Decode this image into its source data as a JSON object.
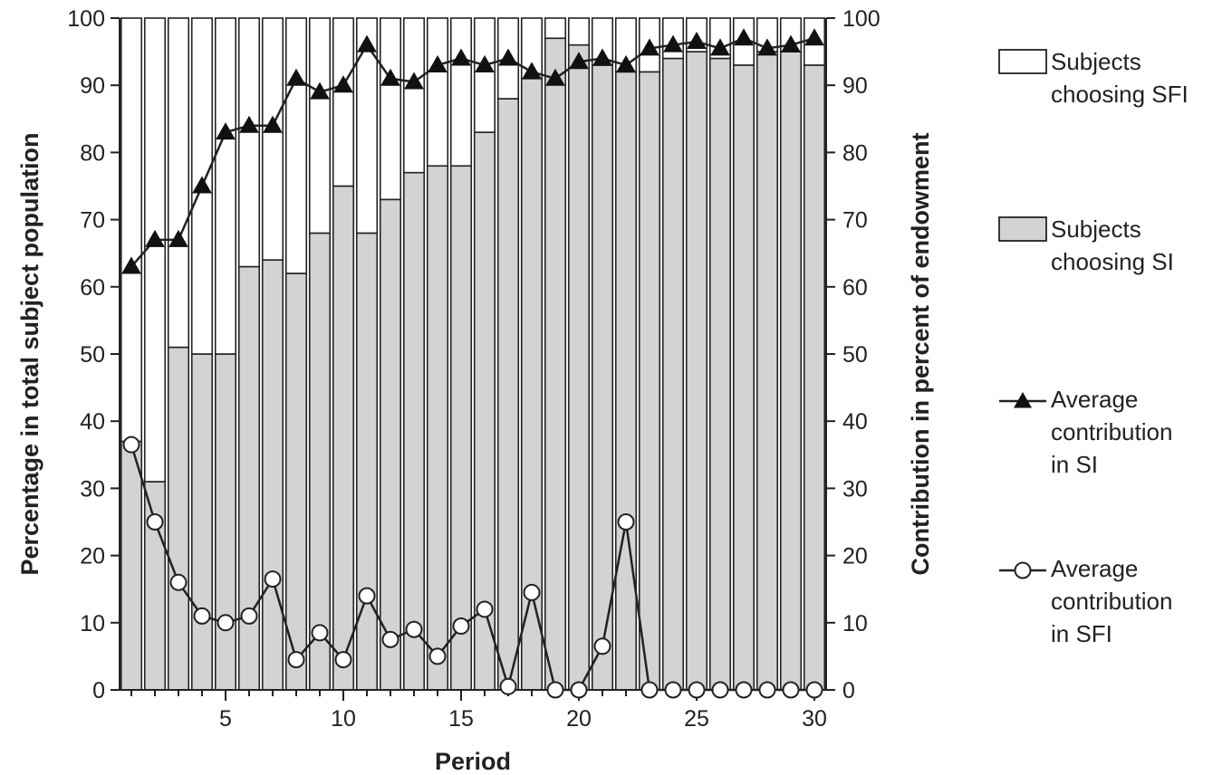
{
  "chart_data": {
    "type": "bar",
    "stacked": true,
    "x": [
      1,
      2,
      3,
      4,
      5,
      6,
      7,
      8,
      9,
      10,
      11,
      12,
      13,
      14,
      15,
      16,
      17,
      18,
      19,
      20,
      21,
      22,
      23,
      24,
      25,
      26,
      27,
      28,
      29,
      30
    ],
    "xlabel": "Period",
    "ylabel": "Percentage in total subject population",
    "y2label": "Contribution in percent of endowment",
    "xticks": [
      5,
      10,
      15,
      20,
      25,
      30
    ],
    "yticks": [
      0,
      10,
      20,
      30,
      40,
      50,
      60,
      70,
      80,
      90,
      100
    ],
    "xlim": [
      0.5,
      30.5
    ],
    "ylim": [
      0,
      100
    ],
    "y2lim": [
      0,
      100
    ],
    "legend_position": "right",
    "bar_colors": {
      "SI": "#d3d3d3",
      "SFI": "#ffffff"
    },
    "series": [
      {
        "name": "Subjects choosing SI",
        "kind": "bar",
        "values": [
          37,
          31,
          51,
          50,
          50,
          63,
          64,
          62,
          68,
          75,
          68,
          73,
          77,
          78,
          78,
          83,
          88,
          91,
          97,
          96,
          93,
          92,
          92,
          94,
          95,
          94,
          93,
          95,
          95,
          93
        ]
      },
      {
        "name": "Subjects choosing SFI",
        "kind": "bar",
        "values": [
          63,
          69,
          49,
          50,
          50,
          37,
          36,
          38,
          32,
          25,
          32,
          27,
          23,
          22,
          22,
          17,
          12,
          9,
          3,
          4,
          7,
          8,
          8,
          6,
          5,
          6,
          7,
          5,
          5,
          7
        ]
      },
      {
        "name": "Average contribution in SI",
        "kind": "line",
        "marker": "filled-triangle",
        "axis": "right",
        "values": [
          63,
          67,
          67,
          75,
          83,
          84,
          84,
          91,
          89,
          90,
          96,
          91,
          90.5,
          93,
          94,
          93,
          94,
          92,
          91,
          93.5,
          94,
          93,
          95.5,
          96,
          96.5,
          95.5,
          97,
          95.5,
          96,
          97
        ]
      },
      {
        "name": "Average contribution in SFI",
        "kind": "line",
        "marker": "open-circle",
        "axis": "right",
        "values": [
          36.5,
          25,
          16,
          11,
          10,
          11,
          16.5,
          4.5,
          8.5,
          4.5,
          14,
          7.5,
          9,
          5,
          9.5,
          12,
          0.5,
          14.5,
          0,
          0,
          6.5,
          25,
          0,
          0,
          0,
          0,
          0,
          0,
          0,
          0
        ]
      }
    ],
    "legend": [
      {
        "label_lines": [
          "Subjects",
          "choosing SFI"
        ],
        "symbol": "white-box"
      },
      {
        "label_lines": [
          "Subjects",
          "choosing SI"
        ],
        "symbol": "grey-box"
      },
      {
        "label_lines": [
          "Average",
          "contribution",
          "in SI"
        ],
        "symbol": "line-filled-triangle"
      },
      {
        "label_lines": [
          "Average",
          "contribution",
          "in SFI"
        ],
        "symbol": "line-open-circle"
      }
    ]
  }
}
